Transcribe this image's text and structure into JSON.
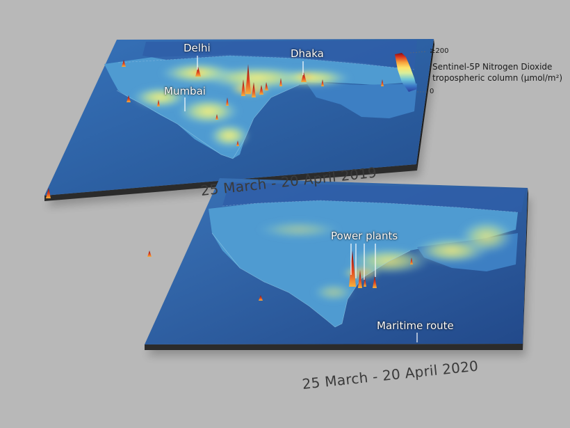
{
  "top_map": {
    "period": "25 March - 20 April 2019",
    "labels": {
      "delhi": "Delhi",
      "dhaka": "Dhaka",
      "mumbai": "Mumbai"
    }
  },
  "bottom_map": {
    "period": "25 March - 20 April 2020",
    "labels": {
      "power_plants": "Power plants",
      "maritime_route": "Maritime route"
    }
  },
  "legend": {
    "title_line1": "Sentinel-5P Nitrogen Dioxide",
    "title_line2": "tropospheric column (µmol/m²)",
    "max_label": "≥200",
    "min_label": "0",
    "colors": [
      "#2c3f9e",
      "#3a78c8",
      "#6ec6d8",
      "#d6ee9c",
      "#fde36a",
      "#f7a03a",
      "#d8361f",
      "#8a0a12"
    ]
  },
  "colors": {
    "background": "#b8b8b8",
    "ocean": "#2d5fa8",
    "ocean_deep": "#234f94",
    "land_low": "#4f9bd1",
    "land_mid": "#88d3e0",
    "hotspot_high": "#b21a18",
    "slab_side": "#2b2b2b"
  }
}
